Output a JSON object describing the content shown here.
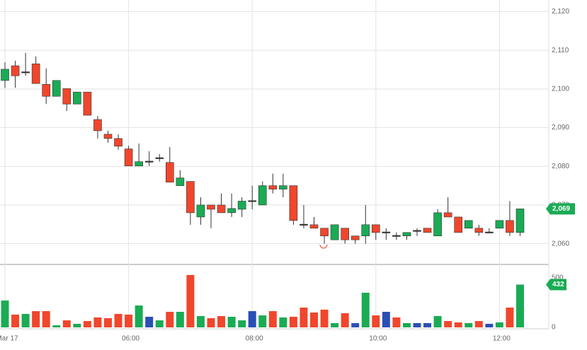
{
  "chart_data": [
    {
      "type": "candlestick",
      "categories": [
        "Mar 17",
        null,
        null,
        null,
        null,
        null,
        null,
        null,
        null,
        null,
        null,
        null,
        "06:00",
        null,
        null,
        null,
        null,
        null,
        null,
        null,
        null,
        null,
        null,
        null,
        "08:00",
        null,
        null,
        null,
        null,
        null,
        null,
        null,
        null,
        null,
        null,
        null,
        "10:00",
        null,
        null,
        null,
        null,
        null,
        null,
        null,
        null,
        null,
        null,
        null,
        "12:00",
        null,
        null
      ],
      "open": [
        2102.2,
        2106.0,
        2104.3,
        2106.5,
        2101.2,
        2098.1,
        2100.1,
        2096.1,
        2099.2,
        2092.1,
        2088.3,
        2087.2,
        2084.5,
        2080.1,
        2081.2,
        2082.1,
        2081.0,
        2075.0,
        2076.1,
        2066.9,
        2070.0,
        2070.0,
        2068.0,
        2068.9,
        2071.0,
        2070.0,
        2075.0,
        2074.1,
        2075.0,
        2064.9,
        2064.9,
        2064.0,
        2061.0,
        2064.0,
        2062.0,
        2062.0,
        2064.9,
        2062.9,
        2062.0,
        2062.0,
        2063.3,
        2064.0,
        2062.0,
        2068.0,
        2066.9,
        2064.0,
        2064.0,
        2062.9,
        2064.0,
        2066.0,
        2062.9
      ],
      "high": [
        2106.9,
        2107.3,
        2109.3,
        2108.4,
        2105.3,
        2102.2,
        2100.1,
        2099.2,
        2099.2,
        2093.0,
        2089.2,
        2088.3,
        2085.3,
        2085.9,
        2083.9,
        2083.2,
        2085.0,
        2079.0,
        2076.1,
        2072.0,
        2070.0,
        2073.0,
        2073.0,
        2072.0,
        2075.0,
        2076.1,
        2078.1,
        2078.1,
        2075.0,
        2070.0,
        2066.9,
        2064.0,
        2064.9,
        2064.0,
        2062.0,
        2070.0,
        2064.9,
        2064.0,
        2062.9,
        2062.9,
        2064.0,
        2064.0,
        2068.9,
        2072.0,
        2066.9,
        2066.0,
        2064.9,
        2064.0,
        2066.0,
        2071.0,
        2069.0
      ],
      "low": [
        2100.3,
        2100.3,
        2103.4,
        2101.4,
        2096.1,
        2098.1,
        2094.3,
        2096.1,
        2093.2,
        2087.2,
        2086.1,
        2084.3,
        2080.1,
        2080.1,
        2080.1,
        2081.2,
        2075.9,
        2075.0,
        2064.9,
        2064.9,
        2064.0,
        2068.0,
        2066.9,
        2066.9,
        2068.9,
        2070.0,
        2073.0,
        2072.0,
        2064.9,
        2064.0,
        2064.0,
        2060.0,
        2061.0,
        2060.0,
        2060.0,
        2060.0,
        2061.0,
        2061.0,
        2061.0,
        2061.0,
        2062.0,
        2062.9,
        2062.0,
        2066.9,
        2062.9,
        2064.0,
        2062.0,
        2062.9,
        2064.0,
        2062.0,
        2062.0
      ],
      "close": [
        2105.1,
        2103.4,
        2104.3,
        2101.4,
        2098.1,
        2102.2,
        2096.1,
        2099.2,
        2093.2,
        2089.2,
        2087.2,
        2085.2,
        2080.1,
        2081.2,
        2081.2,
        2082.1,
        2075.9,
        2077.0,
        2068.0,
        2070.0,
        2068.9,
        2068.0,
        2069.1,
        2071.0,
        2071.0,
        2075.0,
        2074.1,
        2075.0,
        2066.0,
        2064.9,
        2064.0,
        2062.0,
        2064.9,
        2061.0,
        2061.0,
        2064.9,
        2062.9,
        2062.9,
        2062.0,
        2062.9,
        2063.3,
        2062.9,
        2068.0,
        2066.9,
        2062.9,
        2066.0,
        2062.9,
        2062.9,
        2066.0,
        2062.9,
        2069.0
      ],
      "up_color": "#1aab55",
      "down_color": "#f0462c",
      "flat_color": "#333333",
      "ylim": [
        2055,
        2123
      ],
      "yticks": [
        {
          "value": 2060,
          "label": "2,060"
        },
        {
          "value": 2070,
          "label": "2,070"
        },
        {
          "value": 2080,
          "label": "2,080"
        },
        {
          "value": 2090,
          "label": "2,090"
        },
        {
          "value": 2100,
          "label": "2,100"
        },
        {
          "value": 2110,
          "label": "2,110"
        },
        {
          "value": 2120,
          "label": "2,120"
        }
      ],
      "last_label": {
        "value": 2069,
        "label": "2,069"
      },
      "grid": true
    },
    {
      "type": "bar",
      "values": [
        271,
        129,
        136,
        164,
        164,
        21,
        71,
        36,
        64,
        100,
        93,
        136,
        129,
        221,
        107,
        71,
        157,
        157,
        529,
        114,
        93,
        114,
        107,
        71,
        164,
        121,
        164,
        100,
        107,
        200,
        150,
        179,
        43,
        143,
        43,
        350,
        121,
        157,
        100,
        43,
        43,
        43,
        114,
        64,
        50,
        43,
        64,
        36,
        50,
        200,
        432
      ],
      "colors": [
        "#1aab55",
        "#f0462c",
        "#1aab55",
        "#f0462c",
        "#f0462c",
        "#1aab55",
        "#f0462c",
        "#1aab55",
        "#f0462c",
        "#f0462c",
        "#f0462c",
        "#f0462c",
        "#f0462c",
        "#1aab55",
        "#2a4fb5",
        "#1aab55",
        "#f0462c",
        "#1aab55",
        "#f0462c",
        "#1aab55",
        "#f0462c",
        "#f0462c",
        "#1aab55",
        "#1aab55",
        "#2a4fb5",
        "#1aab55",
        "#f0462c",
        "#1aab55",
        "#f0462c",
        "#f0462c",
        "#f0462c",
        "#f0462c",
        "#1aab55",
        "#f0462c",
        "#2a4fb5",
        "#1aab55",
        "#f0462c",
        "#2a4fb5",
        "#f0462c",
        "#1aab55",
        "#2a4fb5",
        "#2a4fb5",
        "#1aab55",
        "#f0462c",
        "#f0462c",
        "#1aab55",
        "#f0462c",
        "#2a4fb5",
        "#1aab55",
        "#f0462c",
        "#1aab55"
      ],
      "ylim": [
        0,
        600
      ],
      "yticks": [
        0,
        500
      ],
      "last_label": 432,
      "last_color": "#1aab55"
    }
  ]
}
